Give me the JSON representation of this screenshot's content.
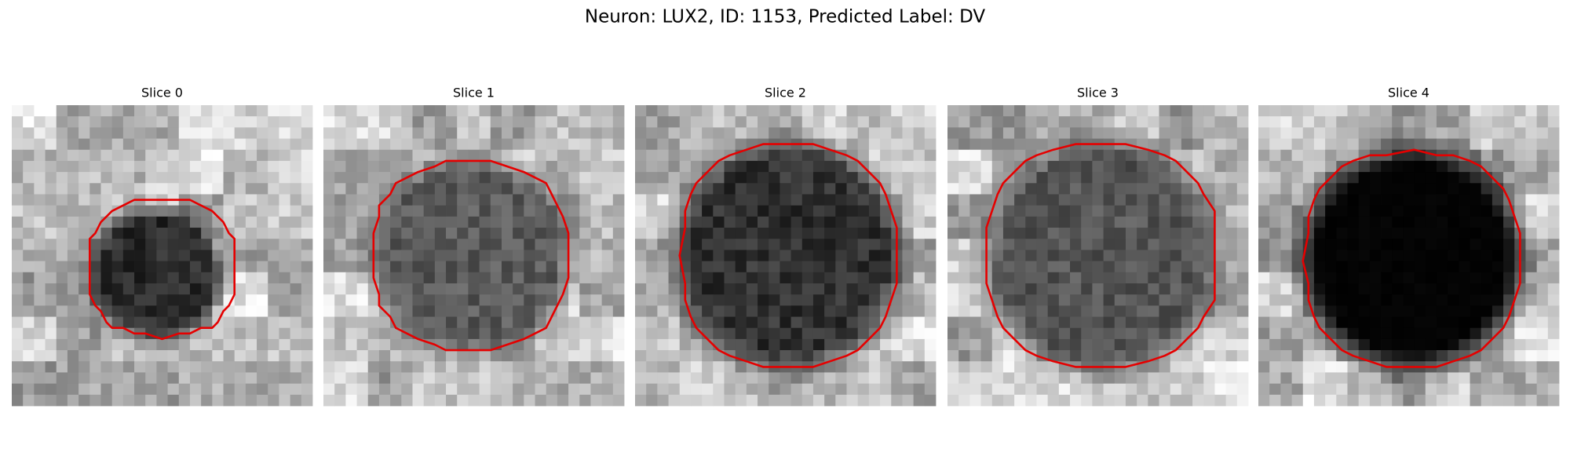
{
  "title": "Neuron: LUX2, ID: 1153, Predicted Label: DV",
  "panels": [
    {
      "title": "Slice 0"
    },
    {
      "title": "Slice 1"
    },
    {
      "title": "Slice 2"
    },
    {
      "title": "Slice 3"
    },
    {
      "title": "Slice 4"
    }
  ]
}
